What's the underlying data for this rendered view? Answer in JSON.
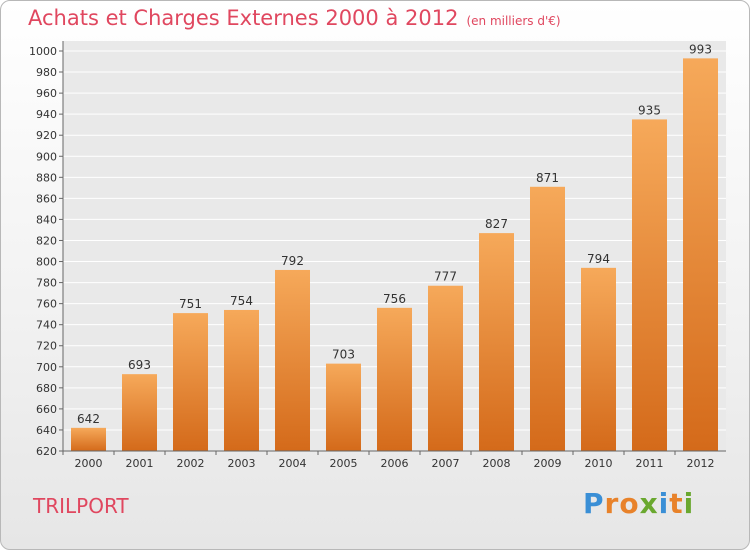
{
  "title": "Achats et Charges Externes 2000 à 2012",
  "subtitle": "(en milliers d'€)",
  "town": "TRILPORT",
  "brand": "Proxiti",
  "colors": {
    "title": "#e0475f",
    "bar_top": "#f6a95a",
    "bar_bottom": "#d46a1a",
    "plot_bg": "#e9e9e9",
    "grid": "#ffffff"
  },
  "chart_data": {
    "type": "bar",
    "title": "Achats et Charges Externes 2000 à 2012",
    "subtitle": "(en milliers d'€)",
    "categories": [
      "2000",
      "2001",
      "2002",
      "2003",
      "2004",
      "2005",
      "2006",
      "2007",
      "2008",
      "2009",
      "2010",
      "2011",
      "2012"
    ],
    "values": [
      642,
      693,
      751,
      754,
      792,
      703,
      756,
      777,
      827,
      871,
      794,
      935,
      993
    ],
    "ylim": [
      620,
      1000
    ],
    "yticks": [
      620,
      640,
      660,
      680,
      700,
      720,
      740,
      760,
      780,
      800,
      820,
      840,
      860,
      880,
      900,
      920,
      940,
      960,
      980,
      1000
    ],
    "grid": true,
    "data_labels": true,
    "legend": "none"
  }
}
